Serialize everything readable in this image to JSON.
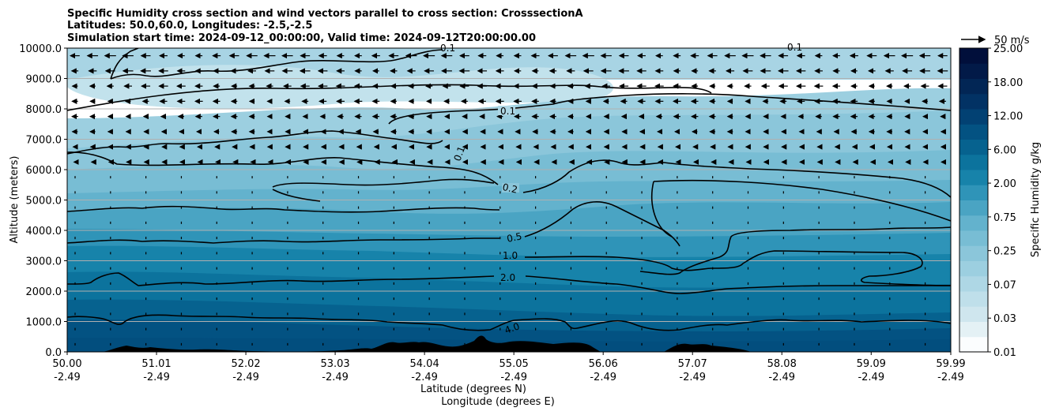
{
  "chart_data": {
    "type": "heatmap",
    "title_lines": [
      "Specific Humidity cross section and wind vectors parallel to cross section: CrosssectionA",
      "Latitudes: 50.0,60.0, Longitudes: -2.5,-2.5",
      "Simulation start time: 2024-09-12_00:00:00, Valid time: 2024-09-12T20:00:00.00"
    ],
    "ylabel": "Altitude (meters)",
    "xlabel_lines": [
      "Latitude (degrees N)",
      "Longitude (degrees E)"
    ],
    "y_ticks": [
      "0.0",
      "1000.0",
      "2000.0",
      "3000.0",
      "4000.0",
      "5000.0",
      "6000.0",
      "7000.0",
      "8000.0",
      "9000.0",
      "10000.0"
    ],
    "ylim": [
      0,
      10000
    ],
    "x_ticks_lat": [
      "50.00",
      "51.01",
      "52.02",
      "53.03",
      "54.04",
      "55.05",
      "56.06",
      "57.07",
      "58.08",
      "59.09",
      "59.99"
    ],
    "x_ticks_lon": [
      "-2.49",
      "-2.49",
      "-2.49",
      "-2.49",
      "-2.49",
      "-2.49",
      "-2.49",
      "-2.49",
      "-2.49",
      "-2.49",
      "-2.49"
    ],
    "xlim_lat": [
      50.0,
      59.99
    ],
    "colorbar_label": "Specific Humidity g/kg",
    "colorbar_ticks": [
      "0.01",
      "0.03",
      "0.07",
      "0.25",
      "0.75",
      "2.00",
      "6.00",
      "12.00",
      "18.00",
      "25.00"
    ],
    "colorbar_colors": [
      "#fbfdfe",
      "#e4f1f5",
      "#cfe6ee",
      "#bfdfea",
      "#aed7e5",
      "#9ccfe0",
      "#8bc6da",
      "#78bdd4",
      "#63b2cd",
      "#4aa4c3",
      "#2f94b8",
      "#1783aa",
      "#0c739d",
      "#06628f",
      "#035282",
      "#024173",
      "#023264",
      "#022655",
      "#021a48",
      "#010f3b"
    ],
    "contour_labels": [
      "0.1",
      "0.1",
      "0.1",
      "0.1",
      "0.2",
      "0.5",
      "1.0",
      "2.0",
      "4.0"
    ],
    "wind_key_label": "50 m/s",
    "grid": "horizontal"
  }
}
